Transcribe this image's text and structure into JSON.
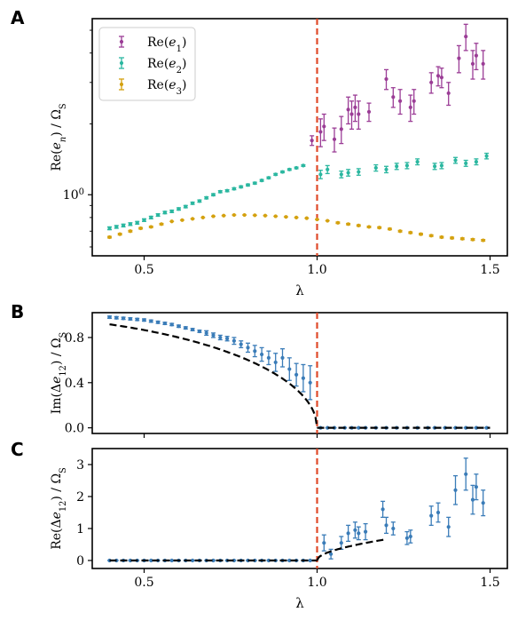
{
  "figure": {
    "panels": [
      "A",
      "B",
      "C"
    ]
  },
  "colors": {
    "e1": "#9b3d96",
    "e2": "#2bb7a0",
    "e3": "#d4a10f",
    "diff": "#3a7cb8",
    "theory": "#000000",
    "critical": "#e04a2a"
  },
  "chart_data": [
    {
      "panel": "A",
      "type": "scatter",
      "xlabel": "λ",
      "ylabel": "Re(e_n) / Ω_S",
      "yscale": "log",
      "xlim": [
        0.35,
        1.55
      ],
      "ylim": [
        0.55,
        5.6
      ],
      "xticks": [
        "0.5",
        "1.0",
        "1.5"
      ],
      "ytick_label": "10^0",
      "ytick_value": 1.0,
      "critical_line_x": 1.0,
      "legend_position": "top-left",
      "series": [
        {
          "name": "Re(e_1)",
          "x": [
            0.985,
            1.01,
            1.02,
            1.05,
            1.07,
            1.09,
            1.1,
            1.11,
            1.12,
            1.15,
            1.2,
            1.22,
            1.24,
            1.27,
            1.28,
            1.33,
            1.35,
            1.36,
            1.38,
            1.41,
            1.43,
            1.45,
            1.46,
            1.48
          ],
          "y": [
            1.7,
            1.85,
            1.95,
            1.72,
            1.9,
            2.3,
            2.2,
            2.35,
            2.2,
            2.25,
            3.1,
            2.6,
            2.5,
            2.35,
            2.5,
            3.0,
            3.2,
            3.15,
            2.7,
            3.8,
            4.7,
            3.6,
            3.9,
            3.6
          ],
          "err": [
            0.08,
            0.25,
            0.25,
            0.2,
            0.25,
            0.3,
            0.3,
            0.3,
            0.3,
            0.2,
            0.3,
            0.25,
            0.3,
            0.3,
            0.3,
            0.3,
            0.3,
            0.3,
            0.3,
            0.5,
            0.6,
            0.5,
            0.5,
            0.5
          ]
        },
        {
          "name": "Re(e_2)",
          "x": [
            0.4,
            0.42,
            0.44,
            0.46,
            0.48,
            0.5,
            0.52,
            0.54,
            0.56,
            0.58,
            0.6,
            0.62,
            0.64,
            0.66,
            0.68,
            0.7,
            0.72,
            0.74,
            0.76,
            0.78,
            0.8,
            0.82,
            0.84,
            0.86,
            0.88,
            0.9,
            0.92,
            0.94,
            0.96,
            1.01,
            1.03,
            1.07,
            1.09,
            1.12,
            1.17,
            1.2,
            1.23,
            1.26,
            1.29,
            1.34,
            1.36,
            1.4,
            1.43,
            1.46,
            1.49
          ],
          "y": [
            0.72,
            0.73,
            0.74,
            0.75,
            0.76,
            0.78,
            0.8,
            0.82,
            0.84,
            0.85,
            0.87,
            0.89,
            0.92,
            0.94,
            0.97,
            1.0,
            1.03,
            1.04,
            1.06,
            1.08,
            1.1,
            1.12,
            1.15,
            1.18,
            1.22,
            1.25,
            1.28,
            1.3,
            1.33,
            1.22,
            1.28,
            1.22,
            1.24,
            1.25,
            1.3,
            1.28,
            1.32,
            1.33,
            1.38,
            1.32,
            1.33,
            1.4,
            1.36,
            1.38,
            1.46
          ],
          "err": [
            0.01,
            0.01,
            0.01,
            0.01,
            0.01,
            0.01,
            0.01,
            0.01,
            0.01,
            0.01,
            0.01,
            0.01,
            0.01,
            0.01,
            0.01,
            0.01,
            0.01,
            0.01,
            0.01,
            0.01,
            0.01,
            0.01,
            0.01,
            0.01,
            0.01,
            0.01,
            0.01,
            0.01,
            0.01,
            0.05,
            0.05,
            0.04,
            0.04,
            0.04,
            0.04,
            0.04,
            0.04,
            0.04,
            0.04,
            0.04,
            0.04,
            0.04,
            0.04,
            0.04,
            0.04
          ]
        },
        {
          "name": "Re(e_3)",
          "x": [
            0.4,
            0.43,
            0.46,
            0.49,
            0.52,
            0.55,
            0.58,
            0.61,
            0.64,
            0.67,
            0.7,
            0.73,
            0.76,
            0.79,
            0.82,
            0.85,
            0.88,
            0.91,
            0.94,
            0.97,
            1.0,
            1.03,
            1.06,
            1.09,
            1.12,
            1.15,
            1.18,
            1.21,
            1.24,
            1.27,
            1.3,
            1.33,
            1.36,
            1.39,
            1.42,
            1.45,
            1.48
          ],
          "y": [
            0.66,
            0.68,
            0.7,
            0.72,
            0.73,
            0.75,
            0.77,
            0.78,
            0.79,
            0.8,
            0.81,
            0.815,
            0.82,
            0.82,
            0.818,
            0.815,
            0.81,
            0.805,
            0.8,
            0.795,
            0.785,
            0.775,
            0.76,
            0.75,
            0.74,
            0.73,
            0.725,
            0.715,
            0.7,
            0.69,
            0.68,
            0.67,
            0.66,
            0.655,
            0.65,
            0.645,
            0.64
          ],
          "err": [
            0.005,
            0.005,
            0.005,
            0.005,
            0.005,
            0.005,
            0.005,
            0.005,
            0.005,
            0.005,
            0.005,
            0.005,
            0.005,
            0.005,
            0.005,
            0.005,
            0.005,
            0.005,
            0.005,
            0.005,
            0.005,
            0.005,
            0.005,
            0.005,
            0.005,
            0.005,
            0.005,
            0.005,
            0.005,
            0.005,
            0.005,
            0.005,
            0.005,
            0.005,
            0.005,
            0.005,
            0.005
          ]
        }
      ]
    },
    {
      "panel": "B",
      "type": "scatter",
      "xlabel": "",
      "ylabel": "Im(Δe_12) / Ω_S",
      "xlim": [
        0.35,
        1.55
      ],
      "ylim": [
        -0.05,
        1.02
      ],
      "yticks": [
        0.0,
        0.4,
        0.8
      ],
      "ytick_labels": [
        "0.0",
        "0.4",
        "0.8"
      ],
      "critical_line_x": 1.0,
      "series": [
        {
          "name": "",
          "x": [
            0.4,
            0.42,
            0.44,
            0.46,
            0.48,
            0.5,
            0.52,
            0.54,
            0.56,
            0.58,
            0.6,
            0.62,
            0.64,
            0.66,
            0.68,
            0.7,
            0.72,
            0.74,
            0.76,
            0.78,
            0.8,
            0.82,
            0.84,
            0.86,
            0.88,
            0.9,
            0.92,
            0.94,
            0.96,
            0.98,
            1.01,
            1.03,
            1.05,
            1.08,
            1.1,
            1.12,
            1.14,
            1.17,
            1.2,
            1.23,
            1.26,
            1.29,
            1.32,
            1.34,
            1.37,
            1.4,
            1.43,
            1.46,
            1.49
          ],
          "y": [
            0.98,
            0.975,
            0.97,
            0.965,
            0.96,
            0.955,
            0.945,
            0.935,
            0.925,
            0.915,
            0.9,
            0.885,
            0.87,
            0.855,
            0.84,
            0.82,
            0.8,
            0.79,
            0.77,
            0.74,
            0.71,
            0.68,
            0.65,
            0.62,
            0.58,
            0.62,
            0.52,
            0.47,
            0.44,
            0.4,
            0.0,
            0.0,
            0.0,
            0.0,
            0.0,
            0.0,
            0.0,
            0.0,
            0.0,
            0.0,
            0.0,
            0.0,
            0.0,
            0.0,
            0.0,
            0.0,
            0.0,
            0.0,
            0.0
          ],
          "err": [
            0.01,
            0.01,
            0.01,
            0.01,
            0.01,
            0.01,
            0.01,
            0.01,
            0.01,
            0.01,
            0.01,
            0.01,
            0.01,
            0.01,
            0.02,
            0.02,
            0.02,
            0.02,
            0.03,
            0.03,
            0.04,
            0.05,
            0.06,
            0.06,
            0.08,
            0.08,
            0.1,
            0.1,
            0.12,
            0.15,
            0.005,
            0.005,
            0.005,
            0.005,
            0.005,
            0.005,
            0.005,
            0.005,
            0.005,
            0.005,
            0.005,
            0.005,
            0.005,
            0.005,
            0.005,
            0.005,
            0.005,
            0.005,
            0.005
          ]
        }
      ],
      "theory": "sqrt(1-λ^2)"
    },
    {
      "panel": "C",
      "type": "scatter",
      "xlabel": "λ",
      "ylabel": "Re(Δe_12) / Ω_S",
      "xlim": [
        0.35,
        1.55
      ],
      "ylim": [
        -0.25,
        3.5
      ],
      "xticks": [
        "0.5",
        "1.0",
        "1.5"
      ],
      "yticks": [
        0,
        1,
        2,
        3
      ],
      "ytick_labels": [
        "0",
        "1",
        "2",
        "3"
      ],
      "critical_line_x": 1.0,
      "series": [
        {
          "name": "",
          "x": [
            0.4,
            0.42,
            0.44,
            0.46,
            0.48,
            0.5,
            0.52,
            0.54,
            0.56,
            0.58,
            0.6,
            0.62,
            0.64,
            0.66,
            0.68,
            0.7,
            0.72,
            0.74,
            0.76,
            0.78,
            0.8,
            0.82,
            0.84,
            0.86,
            0.88,
            0.9,
            0.92,
            0.94,
            0.96,
            0.98,
            1.02,
            1.04,
            1.07,
            1.09,
            1.11,
            1.12,
            1.14,
            1.19,
            1.2,
            1.22,
            1.26,
            1.27,
            1.33,
            1.35,
            1.38,
            1.4,
            1.43,
            1.45,
            1.46,
            1.48
          ],
          "y": [
            0.0,
            0.0,
            0.0,
            0.0,
            0.0,
            0.0,
            0.0,
            0.0,
            0.0,
            0.0,
            0.0,
            0.0,
            0.0,
            0.0,
            0.0,
            0.0,
            0.0,
            0.0,
            0.0,
            0.0,
            0.0,
            0.0,
            0.0,
            0.0,
            0.0,
            0.0,
            0.0,
            0.0,
            0.0,
            0.0,
            0.55,
            0.2,
            0.55,
            0.85,
            0.95,
            0.85,
            0.9,
            1.6,
            1.1,
            1.0,
            0.7,
            0.75,
            1.4,
            1.5,
            1.05,
            2.2,
            2.7,
            1.9,
            2.3,
            1.8
          ],
          "err": [
            0.01,
            0.01,
            0.01,
            0.01,
            0.01,
            0.01,
            0.01,
            0.01,
            0.01,
            0.01,
            0.01,
            0.01,
            0.01,
            0.01,
            0.01,
            0.01,
            0.01,
            0.01,
            0.01,
            0.01,
            0.01,
            0.01,
            0.01,
            0.01,
            0.01,
            0.01,
            0.01,
            0.01,
            0.01,
            0.01,
            0.25,
            0.15,
            0.2,
            0.25,
            0.25,
            0.2,
            0.25,
            0.25,
            0.25,
            0.2,
            0.2,
            0.2,
            0.3,
            0.3,
            0.3,
            0.45,
            0.5,
            0.45,
            0.4,
            0.4
          ]
        }
      ],
      "theory": "sqrt(λ^2-1)"
    }
  ]
}
